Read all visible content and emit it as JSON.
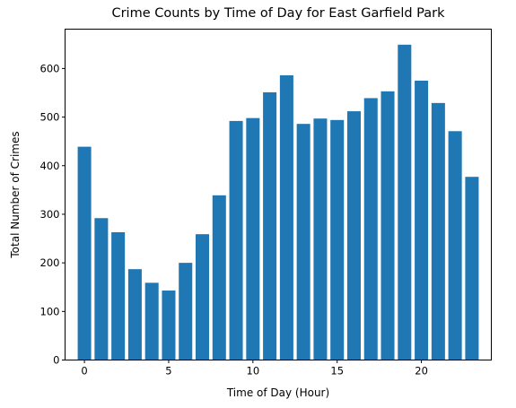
{
  "chart_data": {
    "type": "bar",
    "title": "Crime Counts by Time of Day for East Garfield Park",
    "xlabel": "Time of Day (Hour)",
    "ylabel": "Total Number of Crimes",
    "x": [
      0,
      1,
      2,
      3,
      4,
      5,
      6,
      7,
      8,
      9,
      10,
      11,
      12,
      13,
      14,
      15,
      16,
      17,
      18,
      19,
      20,
      21,
      22,
      23
    ],
    "values": [
      439,
      292,
      263,
      187,
      159,
      143,
      200,
      259,
      339,
      492,
      498,
      551,
      586,
      486,
      497,
      494,
      512,
      539,
      553,
      649,
      575,
      529,
      471,
      377
    ],
    "xlim": [
      -1.15,
      24.15
    ],
    "ylim": [
      0,
      681
    ],
    "xticks": [
      0,
      5,
      10,
      15,
      20
    ],
    "yticks": [
      0,
      100,
      200,
      300,
      400,
      500,
      600
    ],
    "bar_color": "#1f77b4",
    "grid": false,
    "legend": "none"
  }
}
